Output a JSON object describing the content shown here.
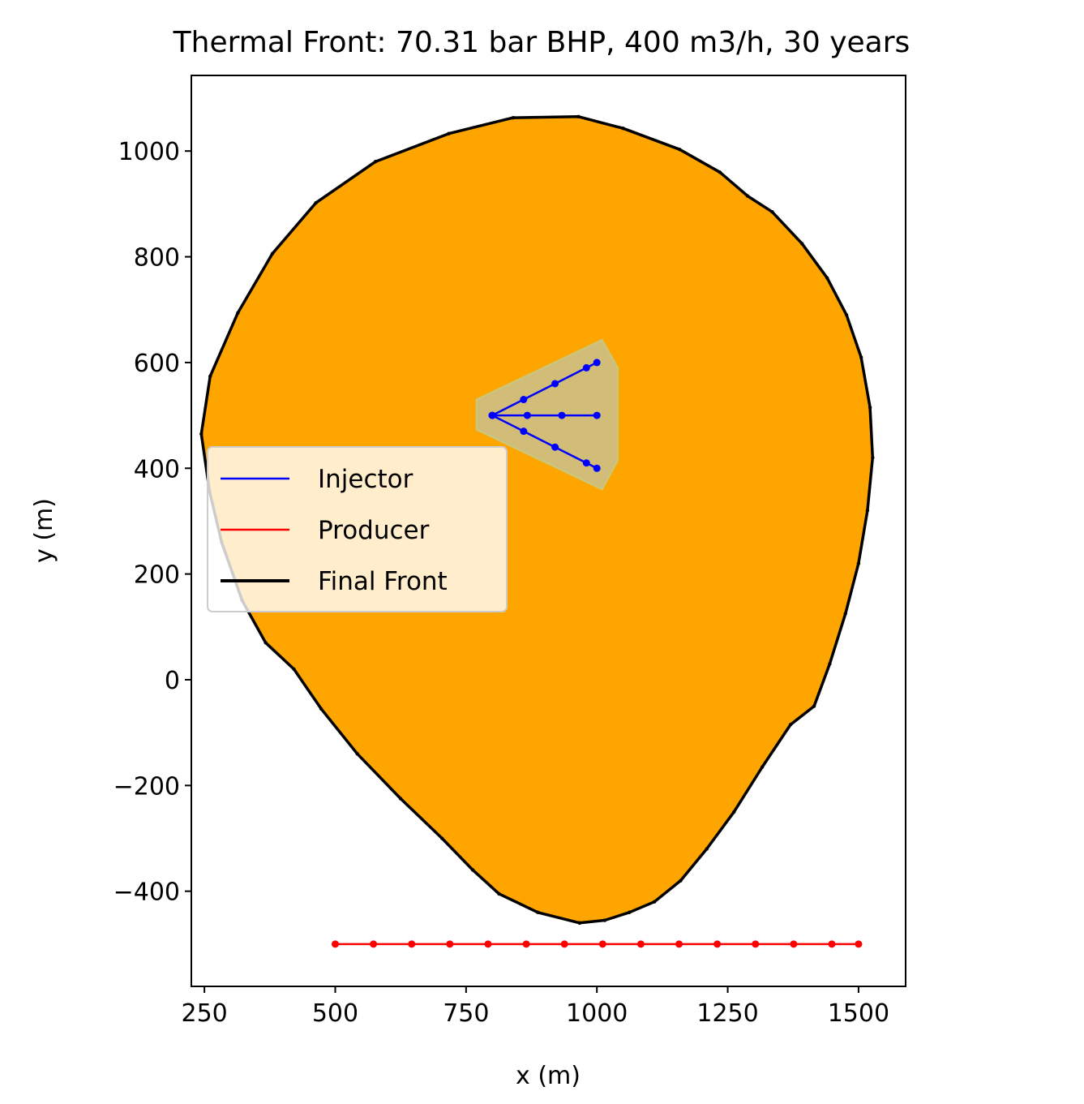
{
  "chart_data": {
    "type": "line",
    "title": "Thermal Front: 70.31 bar BHP, 400 m3/h, 30 years",
    "xlabel": "x (m)",
    "ylabel": "y (m)",
    "xlim": [
      225,
      1590
    ],
    "ylim": [
      -580,
      1143
    ],
    "xticks": [
      250,
      500,
      750,
      1000,
      1250,
      1500
    ],
    "xtick_labels": [
      "250",
      "500",
      "750",
      "1000",
      "1250",
      "1500"
    ],
    "yticks": [
      -400,
      -200,
      0,
      200,
      400,
      600,
      800,
      1000
    ],
    "ytick_labels": [
      "−400",
      "−200",
      "0",
      "200",
      "400",
      "600",
      "800",
      "1000"
    ],
    "grid": false,
    "legend": {
      "position": "center-left",
      "entries": [
        {
          "label": "Injector",
          "color": "#0000ff"
        },
        {
          "label": "Producer",
          "color": "#ff0000"
        },
        {
          "label": "Final Front",
          "color": "#000000"
        }
      ]
    },
    "colors": {
      "front_fill": "#ffa500",
      "inner_fill": "#d2bd78",
      "inner_edge": "#c8c87f",
      "injector": "#0000ff",
      "producer": "#ff0000",
      "front": "#000000"
    },
    "final_front": [
      [
        967,
        -460
      ],
      [
        1015,
        -455
      ],
      [
        1062,
        -440
      ],
      [
        1110,
        -420
      ],
      [
        1160,
        -380
      ],
      [
        1210,
        -320
      ],
      [
        1262,
        -250
      ],
      [
        1316,
        -165
      ],
      [
        1370,
        -85
      ],
      [
        1415,
        -50
      ],
      [
        1445,
        30
      ],
      [
        1475,
        125
      ],
      [
        1500,
        220
      ],
      [
        1517,
        320
      ],
      [
        1527,
        420
      ],
      [
        1522,
        515
      ],
      [
        1505,
        610
      ],
      [
        1477,
        690
      ],
      [
        1440,
        760
      ],
      [
        1392,
        825
      ],
      [
        1335,
        885
      ],
      [
        1288,
        915
      ],
      [
        1235,
        960
      ],
      [
        1158,
        1003
      ],
      [
        1050,
        1043
      ],
      [
        965,
        1065
      ],
      [
        840,
        1063
      ],
      [
        717,
        1033
      ],
      [
        577,
        980
      ],
      [
        463,
        902
      ],
      [
        380,
        806
      ],
      [
        314,
        694
      ],
      [
        261,
        574
      ],
      [
        244,
        465
      ],
      [
        260,
        355
      ],
      [
        283,
        260
      ],
      [
        322,
        150
      ],
      [
        367,
        70
      ],
      [
        421,
        20
      ],
      [
        473,
        -55
      ],
      [
        542,
        -140
      ],
      [
        625,
        -225
      ],
      [
        704,
        -300
      ],
      [
        763,
        -360
      ],
      [
        813,
        -405
      ],
      [
        887,
        -440
      ],
      [
        967,
        -460
      ]
    ],
    "injector_region": [
      [
        770,
        530
      ],
      [
        1010,
        643
      ],
      [
        1040,
        590
      ],
      [
        1040,
        415
      ],
      [
        1010,
        360
      ],
      [
        770,
        473
      ],
      [
        770,
        530
      ]
    ],
    "injector_branches": [
      {
        "x": [
          800,
          860,
          920,
          980,
          1000
        ],
        "y": [
          500,
          530,
          560,
          590,
          600
        ]
      },
      {
        "x": [
          800,
          867,
          933,
          1000
        ],
        "y": [
          500,
          500,
          500,
          500
        ]
      },
      {
        "x": [
          800,
          860,
          920,
          980,
          1000
        ],
        "y": [
          500,
          470,
          440,
          410,
          400
        ]
      }
    ],
    "producer": {
      "x": [
        500,
        573,
        646,
        719,
        792,
        865,
        938,
        1011,
        1084,
        1157,
        1230,
        1303,
        1376,
        1449,
        1500
      ],
      "y": [
        -500,
        -500,
        -500,
        -500,
        -500,
        -500,
        -500,
        -500,
        -500,
        -500,
        -500,
        -500,
        -500,
        -500,
        -500
      ]
    }
  }
}
